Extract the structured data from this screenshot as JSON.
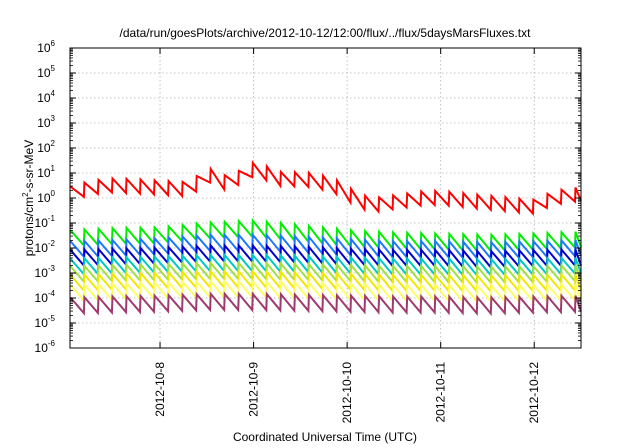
{
  "chart_data": {
    "type": "line",
    "title": "/data/run/goesPlots/archive/2012-10-12/12:00/flux/../flux/5daysMarsFluxes.txt",
    "xlabel": "Coordinated Universal Time (UTC)",
    "ylabel_parts": {
      "base": "protons/cm",
      "sup": "2",
      "rest": "-s-sr-MeV"
    },
    "xlim": [
      "2012-10-07T00:54",
      "2012-10-12T12:00"
    ],
    "ylim_exponents": [
      -6,
      6
    ],
    "yscale": "log",
    "grid": true,
    "legend": "none",
    "x_tick_labels": [
      "2012-10-8",
      "2012-10-9",
      "2012-10-10",
      "2012-10-11",
      "2012-10-12"
    ],
    "x_tick_dates": [
      "2012-10-08",
      "2012-10-09",
      "2012-10-10",
      "2012-10-11",
      "2012-10-12"
    ],
    "y_tick_base": "10",
    "y_tick_exponents": [
      "-6",
      "-5",
      "-4",
      "-3",
      "-2",
      "-1",
      "0",
      "1",
      "2",
      "3",
      "4",
      "5",
      "6"
    ],
    "sawtooth_period_hours": 3.6,
    "series": [
      {
        "color": "#ff0000",
        "points": [
          [
            "2012-10-07T01:00",
            1.5
          ],
          [
            "2012-10-07T06:00",
            2.5
          ],
          [
            "2012-10-07T11:00",
            3.2
          ],
          [
            "2012-10-07T17:00",
            3.0
          ],
          [
            "2012-10-08T00:00",
            2.6
          ],
          [
            "2012-10-08T06:00",
            2.3
          ],
          [
            "2012-10-08T09:00",
            2.6
          ],
          [
            "2012-10-08T10:30",
            13.0
          ],
          [
            "2012-10-08T16:00",
            4.0
          ],
          [
            "2012-10-08T21:00",
            7.0
          ],
          [
            "2012-10-09T00:00",
            14.0
          ],
          [
            "2012-10-09T04:00",
            9.0
          ],
          [
            "2012-10-09T08:00",
            5.0
          ],
          [
            "2012-10-09T12:00",
            6.0
          ],
          [
            "2012-10-09T15:00",
            5.0
          ],
          [
            "2012-10-09T20:00",
            3.5
          ],
          [
            "2012-10-10T00:00",
            1.6
          ],
          [
            "2012-10-10T03:00",
            0.7
          ],
          [
            "2012-10-10T08:00",
            0.55
          ],
          [
            "2012-10-10T14:00",
            0.75
          ],
          [
            "2012-10-10T20:00",
            1.0
          ],
          [
            "2012-10-11T00:00",
            1.0
          ],
          [
            "2012-10-11T05:00",
            0.85
          ],
          [
            "2012-10-11T10:00",
            0.7
          ],
          [
            "2012-10-11T15:00",
            0.6
          ],
          [
            "2012-10-11T20:00",
            0.5
          ],
          [
            "2012-10-12T00:00",
            0.45
          ],
          [
            "2012-10-12T05:00",
            1.0
          ],
          [
            "2012-10-12T12:00",
            1.5
          ]
        ]
      },
      {
        "color": "#00ee00",
        "points": [
          [
            "2012-10-07T01:00",
            0.025
          ],
          [
            "2012-10-07T12:00",
            0.03
          ],
          [
            "2012-10-08T00:00",
            0.032
          ],
          [
            "2012-10-08T12:00",
            0.05
          ],
          [
            "2012-10-09T00:00",
            0.06
          ],
          [
            "2012-10-09T12:00",
            0.04
          ],
          [
            "2012-10-10T00:00",
            0.025
          ],
          [
            "2012-10-10T12:00",
            0.02
          ],
          [
            "2012-10-11T00:00",
            0.018
          ],
          [
            "2012-10-11T12:00",
            0.016
          ],
          [
            "2012-10-12T00:00",
            0.018
          ],
          [
            "2012-10-12T12:00",
            0.022
          ]
        ]
      },
      {
        "color": "#1e78ff",
        "points": [
          [
            "2012-10-07T01:00",
            0.009
          ],
          [
            "2012-10-07T12:00",
            0.01
          ],
          [
            "2012-10-08T00:00",
            0.012
          ],
          [
            "2012-10-08T12:00",
            0.016
          ],
          [
            "2012-10-09T00:00",
            0.016
          ],
          [
            "2012-10-09T12:00",
            0.014
          ],
          [
            "2012-10-10T00:00",
            0.011
          ],
          [
            "2012-10-10T12:00",
            0.009
          ],
          [
            "2012-10-11T00:00",
            0.009
          ],
          [
            "2012-10-11T12:00",
            0.008
          ],
          [
            "2012-10-12T00:00",
            0.009
          ],
          [
            "2012-10-12T12:00",
            0.01
          ]
        ]
      },
      {
        "color": "#0000cc",
        "points": [
          [
            "2012-10-07T01:00",
            0.004
          ],
          [
            "2012-10-07T12:00",
            0.0045
          ],
          [
            "2012-10-08T00:00",
            0.005
          ],
          [
            "2012-10-08T12:00",
            0.006
          ],
          [
            "2012-10-09T00:00",
            0.006
          ],
          [
            "2012-10-09T12:00",
            0.0055
          ],
          [
            "2012-10-10T00:00",
            0.0045
          ],
          [
            "2012-10-10T12:00",
            0.004
          ],
          [
            "2012-10-11T00:00",
            0.004
          ],
          [
            "2012-10-11T12:00",
            0.0035
          ],
          [
            "2012-10-12T00:00",
            0.004
          ],
          [
            "2012-10-12T12:00",
            0.0042
          ]
        ]
      },
      {
        "color": "#00c8c8",
        "points": [
          [
            "2012-10-07T01:00",
            0.0018
          ],
          [
            "2012-10-07T12:00",
            0.002
          ],
          [
            "2012-10-08T00:00",
            0.0022
          ],
          [
            "2012-10-08T12:00",
            0.0025
          ],
          [
            "2012-10-09T00:00",
            0.0025
          ],
          [
            "2012-10-09T12:00",
            0.0023
          ],
          [
            "2012-10-10T00:00",
            0.002
          ],
          [
            "2012-10-10T12:00",
            0.0018
          ],
          [
            "2012-10-11T00:00",
            0.0018
          ],
          [
            "2012-10-11T12:00",
            0.0017
          ],
          [
            "2012-10-12T00:00",
            0.0018
          ],
          [
            "2012-10-12T12:00",
            0.002
          ]
        ]
      },
      {
        "color": "#a0e040",
        "points": [
          [
            "2012-10-07T01:00",
            0.0009
          ],
          [
            "2012-10-07T12:00",
            0.001
          ],
          [
            "2012-10-08T00:00",
            0.0011
          ],
          [
            "2012-10-08T12:00",
            0.0012
          ],
          [
            "2012-10-09T00:00",
            0.0012
          ],
          [
            "2012-10-09T12:00",
            0.0011
          ],
          [
            "2012-10-10T00:00",
            0.001
          ],
          [
            "2012-10-10T12:00",
            0.0009
          ],
          [
            "2012-10-11T00:00",
            0.0009
          ],
          [
            "2012-10-11T12:00",
            0.00085
          ],
          [
            "2012-10-12T00:00",
            0.0009
          ],
          [
            "2012-10-12T12:00",
            0.001
          ]
        ]
      },
      {
        "color": "#f0e800",
        "points": [
          [
            "2012-10-07T01:00",
            0.0004
          ],
          [
            "2012-10-07T12:00",
            0.00045
          ],
          [
            "2012-10-08T00:00",
            0.0005
          ],
          [
            "2012-10-08T12:00",
            0.00055
          ],
          [
            "2012-10-09T00:00",
            0.00055
          ],
          [
            "2012-10-09T12:00",
            0.0005
          ],
          [
            "2012-10-10T00:00",
            0.00045
          ],
          [
            "2012-10-10T12:00",
            0.0004
          ],
          [
            "2012-10-11T00:00",
            0.0004
          ],
          [
            "2012-10-11T12:00",
            0.00038
          ],
          [
            "2012-10-12T00:00",
            0.0004
          ],
          [
            "2012-10-12T12:00",
            0.00042
          ]
        ]
      },
      {
        "color": "#ffff60",
        "points": [
          [
            "2012-10-07T01:00",
            0.00016
          ],
          [
            "2012-10-07T12:00",
            0.00018
          ],
          [
            "2012-10-08T00:00",
            0.0002
          ],
          [
            "2012-10-08T12:00",
            0.00022
          ],
          [
            "2012-10-09T00:00",
            0.00022
          ],
          [
            "2012-10-09T12:00",
            0.0002
          ],
          [
            "2012-10-10T00:00",
            0.00018
          ],
          [
            "2012-10-10T12:00",
            0.00016
          ],
          [
            "2012-10-11T00:00",
            0.00016
          ],
          [
            "2012-10-11T12:00",
            0.00015
          ],
          [
            "2012-10-12T00:00",
            0.00016
          ],
          [
            "2012-10-12T12:00",
            0.00017
          ]
        ]
      },
      {
        "color": "#9e3a6e",
        "points": [
          [
            "2012-10-07T01:00",
            5e-05
          ],
          [
            "2012-10-07T12:00",
            5.5e-05
          ],
          [
            "2012-10-08T00:00",
            6e-05
          ],
          [
            "2012-10-08T12:00",
            7e-05
          ],
          [
            "2012-10-09T00:00",
            7e-05
          ],
          [
            "2012-10-09T12:00",
            6.5e-05
          ],
          [
            "2012-10-10T00:00",
            6e-05
          ],
          [
            "2012-10-10T12:00",
            5.5e-05
          ],
          [
            "2012-10-11T00:00",
            5.5e-05
          ],
          [
            "2012-10-11T12:00",
            5e-05
          ],
          [
            "2012-10-12T00:00",
            5.5e-05
          ],
          [
            "2012-10-12T12:00",
            6e-05
          ]
        ]
      }
    ]
  }
}
